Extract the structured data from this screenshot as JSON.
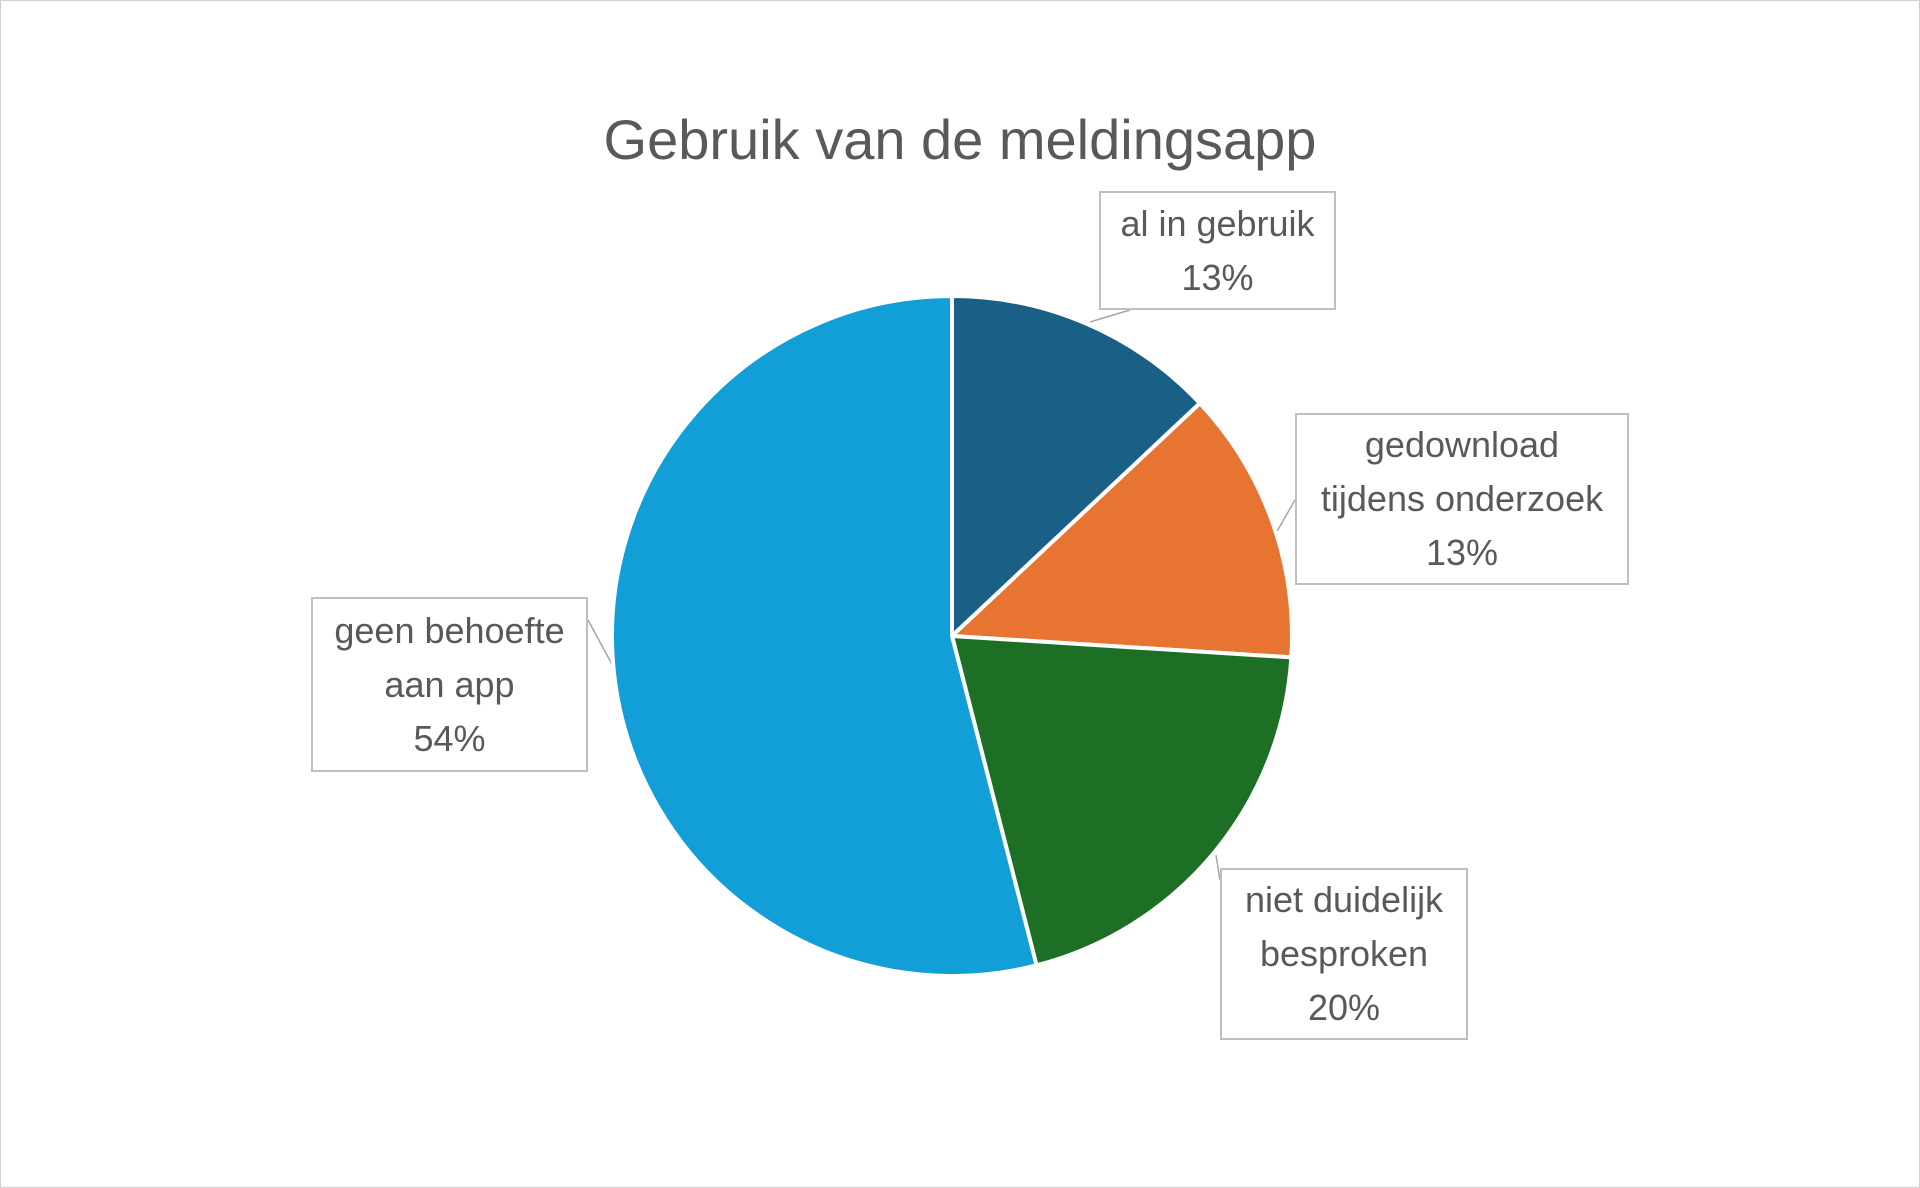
{
  "chart_data": {
    "type": "pie",
    "title": "Gebruik van de meldingsapp",
    "start_angle_deg": 0,
    "direction": "clockwise",
    "slices": [
      {
        "name": "al in gebruik",
        "label_lines": [
          "al in gebruik"
        ],
        "value": 13,
        "value_label": "13%",
        "color": "#1a5f86"
      },
      {
        "name": "gedownload tijdens onderzoek",
        "label_lines": [
          "gedownload",
          "tijdens onderzoek"
        ],
        "value": 13,
        "value_label": "13%",
        "color": "#e87431"
      },
      {
        "name": "niet duidelijk besproken",
        "label_lines": [
          "niet duidelijk",
          "besproken"
        ],
        "value": 20,
        "value_label": "20%",
        "color": "#1d6f26"
      },
      {
        "name": "geen behoefte aan app",
        "label_lines": [
          "geen behoefte",
          "aan app"
        ],
        "value": 54,
        "value_label": "54%",
        "color": "#129ed6"
      }
    ],
    "legend": "none",
    "data_labels": "callout"
  }
}
